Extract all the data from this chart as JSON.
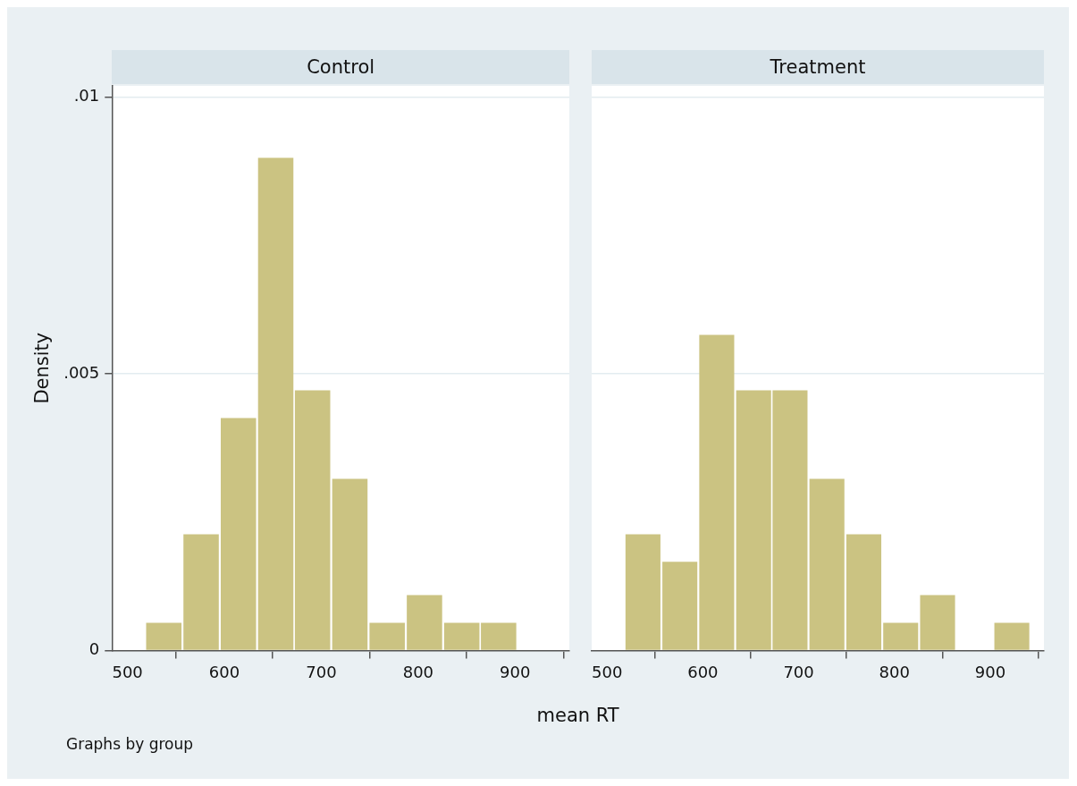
{
  "chart_data": [
    {
      "type": "histogram",
      "title": "Control",
      "xlabel": "mean RT",
      "ylabel": "Density",
      "annotations": [
        "Graphs by group"
      ],
      "bins": [
        518,
        557,
        595,
        634,
        672,
        710,
        749,
        787,
        826,
        864,
        902
      ],
      "values": [
        0.0005,
        0.0021,
        0.0042,
        0.0089,
        0.0047,
        0.0031,
        0.0005,
        0.001,
        0.0005,
        0.0005
      ],
      "color": "#cbc382",
      "xlim": [
        484,
        956
      ],
      "xticks": [
        500,
        600,
        700,
        800,
        900
      ],
      "ylim": [
        0,
        0.0102
      ],
      "yticks": [
        0,
        {
          "value": 0.005,
          "label": ".005"
        },
        {
          "value": 0.01,
          "label": ".01"
        }
      ],
      "grid": "y"
    },
    {
      "type": "histogram",
      "title": "Treatment",
      "bins": [
        518,
        557,
        595,
        634,
        672,
        710,
        749,
        787,
        826,
        864,
        903,
        942
      ],
      "values": [
        0.0021,
        0.0016,
        0.0057,
        0.0047,
        0.0047,
        0.0031,
        0.0021,
        0.0005,
        0.001,
        0,
        0.0005
      ],
      "color": "#cbc382",
      "xlim": [
        484,
        956
      ],
      "xticks": [
        500,
        600,
        700,
        800,
        900
      ],
      "ylim": [
        0,
        0.0102
      ],
      "yticks": [
        {
          "value": 0,
          "label": null
        },
        {
          "value": 0.005,
          "label": null
        },
        {
          "value": 0.01,
          "label": null
        }
      ],
      "grid": "y",
      "tick_labels": "x"
    }
  ]
}
